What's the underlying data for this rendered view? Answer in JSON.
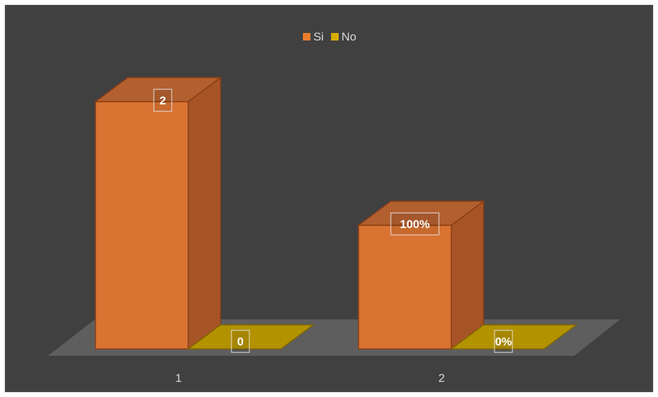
{
  "colors": {
    "background": "#404040",
    "floor": "#5e5e5e",
    "si_front": "#d97332",
    "si_side": "#a65426",
    "si_top": "#b36030",
    "si_edge": "#8a3d14",
    "no_front": "#b38f00",
    "no_side": "#8c6f00",
    "no_top": "#b39200",
    "no_edge": "#806600",
    "label_box_border": "#e6e6e6"
  },
  "legend": [
    {
      "label": "Si",
      "color": "#e87d2c"
    },
    {
      "label": "No",
      "color": "#d9ad00"
    }
  ],
  "chart_data": {
    "type": "bar",
    "style": "3d-clustered-column",
    "title": "",
    "categories": [
      "1",
      "2"
    ],
    "series": [
      {
        "name": "Si",
        "values": [
          2,
          1
        ],
        "data_labels": [
          "2",
          "100%"
        ]
      },
      {
        "name": "No",
        "values": [
          0,
          0
        ],
        "data_labels": [
          "0",
          "0%"
        ]
      }
    ],
    "legend_position": "top",
    "gridlines": false
  }
}
